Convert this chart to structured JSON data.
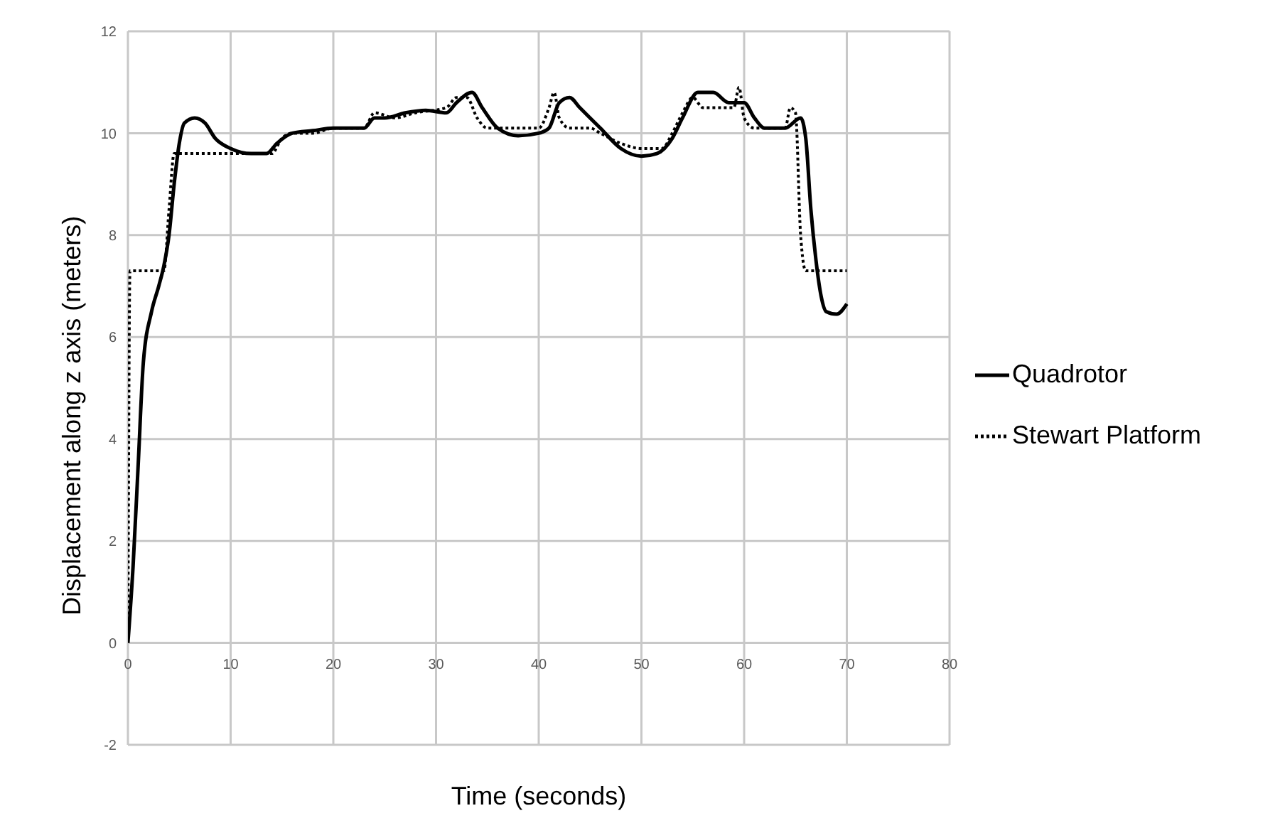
{
  "chart_data": {
    "type": "line",
    "xlabel": "Time (seconds)",
    "ylabel": "Displacement along z axis (meters)",
    "xlim": [
      0,
      80
    ],
    "xticks": [
      0,
      10,
      20,
      30,
      40,
      50,
      60,
      70,
      80
    ],
    "ylim": [
      -2,
      12
    ],
    "yticks": [
      -2,
      0,
      2,
      4,
      6,
      8,
      10,
      12
    ],
    "grid": true,
    "legend": "right",
    "marker": "none",
    "series": [
      {
        "name": "Quadrotor",
        "color": "#000000",
        "line_style": "solid",
        "x": [
          0,
          0.5,
          1,
          1.5,
          2.3,
          3,
          3.5,
          4,
          4.5,
          5,
          5.5,
          6.5,
          7.5,
          8.5,
          10,
          12,
          13.5,
          14.5,
          16,
          18,
          20,
          23,
          24,
          25,
          27,
          29,
          31,
          32,
          33.5,
          34.5,
          36,
          38,
          40,
          41,
          42,
          43,
          44,
          46,
          48,
          50,
          51.5,
          53,
          54,
          55.5,
          57,
          58.5,
          60,
          61,
          62,
          64,
          65.5,
          66,
          66.5,
          67,
          67.5,
          68,
          69,
          70
        ],
        "values": [
          0,
          1.5,
          3.5,
          5.5,
          6.5,
          7,
          7.4,
          8,
          9,
          9.8,
          10.2,
          10.3,
          10.2,
          9.9,
          9.7,
          9.6,
          9.6,
          9.8,
          10,
          10.05,
          10.1,
          10.1,
          10.3,
          10.3,
          10.4,
          10.45,
          10.4,
          10.6,
          10.8,
          10.5,
          10.1,
          9.95,
          10,
          10.1,
          10.6,
          10.7,
          10.5,
          10.1,
          9.7,
          9.55,
          9.6,
          9.9,
          10.3,
          10.8,
          10.8,
          10.6,
          10.6,
          10.3,
          10.1,
          10.1,
          10.3,
          9.9,
          8.5,
          7.5,
          6.8,
          6.5,
          6.45,
          6.65
        ]
      },
      {
        "name": "Stewart Platform",
        "color": "#000000",
        "line_style": "dotted",
        "x": [
          0,
          0.2,
          3.5,
          4,
          4.5,
          14,
          15,
          16,
          18,
          20,
          23,
          24,
          26,
          28,
          31,
          32,
          33,
          34,
          35,
          40,
          41,
          41.5,
          42,
          43,
          45,
          46,
          48,
          50,
          52,
          53,
          54,
          55,
          56,
          59,
          59.5,
          60,
          61,
          64,
          64.5,
          65,
          65.5,
          66,
          70
        ],
        "values": [
          0,
          7.3,
          7.3,
          8.5,
          9.6,
          9.6,
          9.9,
          10,
          10,
          10.1,
          10.1,
          10.4,
          10.3,
          10.4,
          10.5,
          10.7,
          10.7,
          10.3,
          10.1,
          10.1,
          10.5,
          10.8,
          10.3,
          10.1,
          10.1,
          10,
          9.8,
          9.7,
          9.7,
          10,
          10.4,
          10.7,
          10.5,
          10.5,
          10.9,
          10.3,
          10.1,
          10.1,
          10.5,
          10.4,
          8,
          7.3,
          7.3
        ]
      }
    ]
  }
}
